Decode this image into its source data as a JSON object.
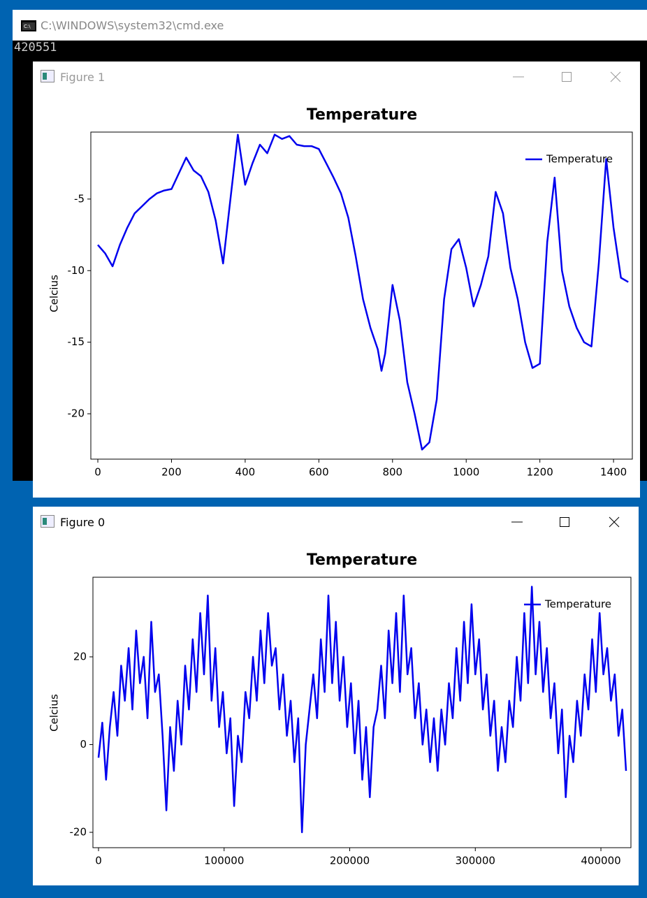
{
  "windows": {
    "console_title": "C:\\WINDOWS\\system32\\cmd.exe",
    "console_output": "420551",
    "figure_titles": [
      "Figure 1",
      "Figure 0"
    ]
  },
  "chart_data": [
    {
      "type": "line",
      "title": "Temperature",
      "ylabel": "Celcius",
      "x": [
        0,
        20,
        40,
        60,
        80,
        100,
        120,
        140,
        160,
        180,
        200,
        220,
        240,
        260,
        280,
        300,
        320,
        340,
        360,
        380,
        400,
        420,
        440,
        460,
        480,
        500,
        520,
        540,
        560,
        580,
        600,
        620,
        640,
        660,
        680,
        700,
        720,
        740,
        760,
        770,
        780,
        800,
        820,
        840,
        860,
        880,
        900,
        920,
        940,
        960,
        980,
        1000,
        1020,
        1040,
        1060,
        1080,
        1100,
        1120,
        1140,
        1160,
        1180,
        1200,
        1220,
        1240,
        1260,
        1280,
        1300,
        1320,
        1340,
        1360,
        1380,
        1400,
        1420,
        1440
      ],
      "series": [
        {
          "name": "Temperature",
          "color": "#0000ee",
          "values": [
            -8.2,
            -8.8,
            -9.7,
            -8.2,
            -7.0,
            -6.0,
            -5.5,
            -5.0,
            -4.6,
            -4.4,
            -4.3,
            -3.2,
            -2.1,
            -3.0,
            -3.4,
            -4.5,
            -6.5,
            -9.5,
            -5.0,
            -0.5,
            -4.0,
            -2.5,
            -1.2,
            -1.8,
            -0.5,
            -0.8,
            -0.6,
            -1.2,
            -1.3,
            -1.3,
            -1.5,
            -2.5,
            -3.5,
            -4.6,
            -6.3,
            -9.0,
            -12.0,
            -14.0,
            -15.5,
            -17.0,
            -15.8,
            -11.0,
            -13.5,
            -17.8,
            -20.0,
            -22.5,
            -22.0,
            -19.0,
            -12.0,
            -8.5,
            -7.8,
            -9.8,
            -12.5,
            -11.0,
            -9.0,
            -4.5,
            -6.0,
            -9.8,
            -12.0,
            -15.0,
            -16.8,
            -16.5,
            -8.0,
            -3.5,
            -10.0,
            -12.5,
            -14.0,
            -15.0,
            -15.3,
            -9.5,
            -2.2,
            -7.0,
            -10.5,
            -10.8
          ]
        }
      ],
      "xlim": [
        -19,
        1451
      ],
      "ylim": [
        -23.17,
        -0.32
      ],
      "xticks": [
        0,
        200,
        400,
        600,
        800,
        1000,
        1200,
        1400
      ],
      "yticks": [
        -20,
        -15,
        -10,
        -5
      ],
      "legend": "upper right"
    },
    {
      "type": "line",
      "title": "Temperature",
      "ylabel": "Celcius",
      "x": [
        0,
        3000,
        6000,
        9000,
        12000,
        15000,
        18000,
        21000,
        24000,
        27000,
        30000,
        33000,
        36000,
        39000,
        42000,
        45000,
        48000,
        51000,
        54000,
        57000,
        60000,
        63000,
        66000,
        69000,
        72000,
        75000,
        78000,
        81000,
        84000,
        87000,
        90000,
        93000,
        96000,
        99000,
        102000,
        105000,
        108000,
        111000,
        114000,
        117000,
        120000,
        123000,
        126000,
        129000,
        132000,
        135000,
        138000,
        141000,
        144000,
        147000,
        150000,
        153000,
        156000,
        159000,
        162000,
        165000,
        168000,
        171000,
        174000,
        177000,
        180000,
        183000,
        186000,
        189000,
        192000,
        195000,
        198000,
        201000,
        204000,
        207000,
        210000,
        213000,
        216000,
        219000,
        222000,
        225000,
        228000,
        231000,
        234000,
        237000,
        240000,
        243000,
        246000,
        249000,
        252000,
        255000,
        258000,
        261000,
        264000,
        267000,
        270000,
        273000,
        276000,
        279000,
        282000,
        285000,
        288000,
        291000,
        294000,
        297000,
        300000,
        303000,
        306000,
        309000,
        312000,
        315000,
        318000,
        321000,
        324000,
        327000,
        330000,
        333000,
        336000,
        339000,
        342000,
        345000,
        348000,
        351000,
        354000,
        357000,
        360000,
        363000,
        366000,
        369000,
        372000,
        375000,
        378000,
        381000,
        384000,
        387000,
        390000,
        393000,
        396000,
        399000,
        402000,
        405000,
        408000,
        411000,
        414000,
        417000,
        420000
      ],
      "series": [
        {
          "name": "Temperature",
          "color": "#0000ee",
          "values": [
            -3,
            5,
            -8,
            4,
            12,
            2,
            18,
            10,
            22,
            8,
            26,
            14,
            20,
            6,
            28,
            12,
            16,
            2,
            -15,
            4,
            -6,
            10,
            0,
            18,
            8,
            24,
            12,
            30,
            16,
            34,
            10,
            22,
            4,
            12,
            -2,
            6,
            -14,
            2,
            -4,
            12,
            6,
            20,
            10,
            26,
            14,
            30,
            18,
            22,
            8,
            16,
            2,
            10,
            -4,
            6,
            -20,
            0,
            8,
            16,
            6,
            24,
            12,
            34,
            14,
            28,
            10,
            20,
            4,
            14,
            -2,
            10,
            -8,
            4,
            -12,
            4,
            8,
            18,
            6,
            26,
            14,
            30,
            12,
            34,
            16,
            22,
            6,
            14,
            0,
            8,
            -4,
            6,
            -6,
            8,
            0,
            14,
            6,
            22,
            10,
            28,
            14,
            32,
            16,
            24,
            8,
            16,
            2,
            10,
            -6,
            4,
            -4,
            10,
            4,
            20,
            10,
            30,
            14,
            36,
            16,
            28,
            12,
            22,
            6,
            14,
            -2,
            8,
            -12,
            2,
            -4,
            10,
            2,
            16,
            8,
            24,
            12,
            30,
            16,
            22,
            10,
            16,
            2,
            8,
            -6
          ]
        }
      ],
      "xlim": [
        -4450,
        423900
      ],
      "ylim": [
        -23.5,
        38.15
      ],
      "xticks": [
        0,
        100000,
        200000,
        300000,
        400000
      ],
      "yticks": [
        -20,
        0,
        20
      ],
      "legend": "upper right"
    }
  ]
}
